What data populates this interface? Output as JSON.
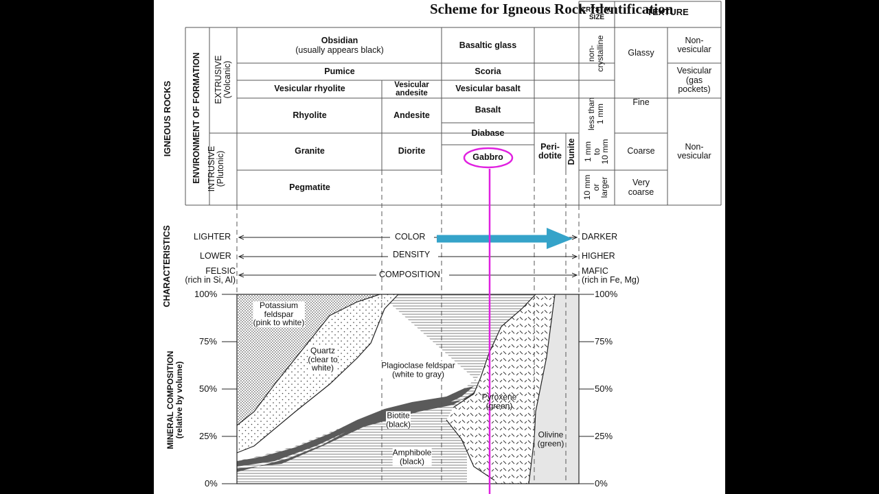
{
  "title": "Scheme for Igneous Rock Identification",
  "header": {
    "crystal_size": "CRYSTAL\nSIZE",
    "texture": "TEXTURE"
  },
  "side_labels": {
    "igneous_rocks": "IGNEOUS ROCKS",
    "environment": "ENVIRONMENT OF FORMATION",
    "extrusive": "EXTRUSIVE\n(Volcanic)",
    "intrusive": "INTRUSIVE\n(Plutonic)",
    "characteristics": "CHARACTERISTICS",
    "mineral_composition": "MINERAL COMPOSITION\n(relative by volume)"
  },
  "rocks": {
    "obsidian": "Obsidian",
    "obsidian_note": "(usually appears black)",
    "basaltic_glass": "Basaltic glass",
    "pumice": "Pumice",
    "scoria": "Scoria",
    "vesicular_rhyolite": "Vesicular rhyolite",
    "vesicular_andesite": "Vesicular\nandesite",
    "vesicular_basalt": "Vesicular basalt",
    "rhyolite": "Rhyolite",
    "andesite": "Andesite",
    "basalt": "Basalt",
    "diabase": "Diabase",
    "granite": "Granite",
    "diorite": "Diorite",
    "gabbro": "Gabbro",
    "peridotite": "Peri-\ndotite",
    "dunite": "Dunite",
    "pegmatite": "Pegmatite"
  },
  "crystal_sizes": {
    "non_crystalline": "non-\ncrystalline",
    "less_than_1mm": "less than\n1 mm",
    "1_to_10mm": "1 mm\nto\n10 mm",
    "10mm_or_larger": "10 mm\nor\nlarger"
  },
  "textures": {
    "glassy": "Glassy",
    "fine": "Fine",
    "coarse": "Coarse",
    "very_coarse": "Very\ncoarse",
    "non_vesicular_top": "Non-\nvesicular",
    "vesicular": "Vesicular\n(gas\npockets)",
    "non_vesicular_bottom": "Non-\nvesicular"
  },
  "characteristics": {
    "lighter": "LIGHTER",
    "color": "COLOR",
    "darker": "DARKER",
    "lower": "LOWER",
    "density": "DENSITY",
    "higher": "HIGHER",
    "felsic": "FELSIC\n(rich in Si, Al)",
    "composition": "COMPOSITION",
    "mafic": "MAFIC\n(rich in Fe, Mg)"
  },
  "minerals": {
    "potassium_feldspar": "Potassium\nfeldspar\n(pink to white)",
    "quartz": "Quartz\n(clear to\nwhite)",
    "plagioclase": "Plagioclase feldspar\n(white to gray)",
    "biotite": "Biotite\n(black)",
    "amphibole": "Amphibole\n(black)",
    "pyroxene": "Pyroxene\n(green)",
    "olivine": "Olivine\n(green)"
  },
  "y_ticks": [
    "100%",
    "75%",
    "50%",
    "25%",
    "0%"
  ],
  "colors": {
    "highlight": "#e020e0",
    "arrow": "#35a3c9",
    "mafic_fill": "#5a5a5a",
    "olivine_fill": "#e6e6e6"
  }
}
